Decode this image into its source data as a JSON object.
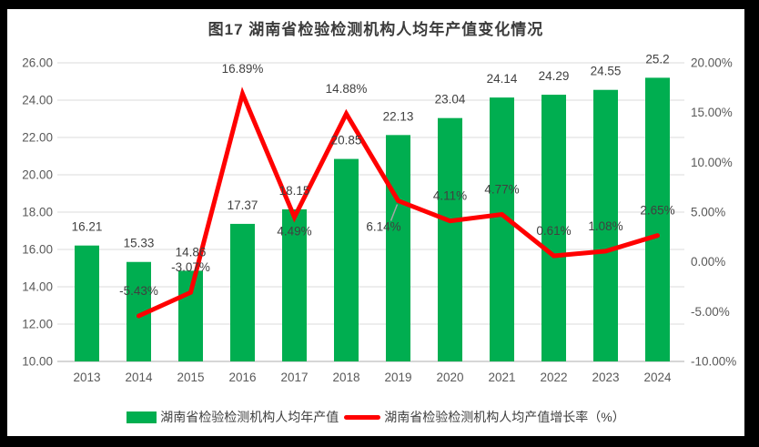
{
  "title": "图17 湖南省检验检测机构人均年产值变化情况",
  "colors": {
    "bar": "#00AE50",
    "line": "#FF0000",
    "value_label": "#404040",
    "axis_text": "#595959",
    "gridline": "#E2E2E2",
    "axis_line": "#D6D6D6",
    "leader": "#A6A6A6",
    "frame_bg": "#000000",
    "panel_bg": "#FFFFFF"
  },
  "chart_data": {
    "type": "bar+line combo",
    "categories": [
      "2013",
      "2014",
      "2015",
      "2016",
      "2017",
      "2018",
      "2019",
      "2020",
      "2021",
      "2022",
      "2023",
      "2024"
    ],
    "series": [
      {
        "name": "湖南省检验检测机构人均年产值",
        "type": "bar",
        "axis": "left",
        "values": [
          16.21,
          15.33,
          14.86,
          17.37,
          18.15,
          20.85,
          22.13,
          23.04,
          24.14,
          24.29,
          24.55,
          25.2
        ],
        "labels": [
          "16.21",
          "15.33",
          "14.86",
          "17.37",
          "18.15",
          "20.85",
          "22.13",
          "23.04",
          "24.14",
          "24.29",
          "24.55",
          "25.2"
        ]
      },
      {
        "name": "湖南省检验检测机构人均产值增长率（%）",
        "type": "line",
        "axis": "right",
        "values": [
          null,
          -5.43,
          -3.07,
          16.89,
          4.49,
          14.88,
          6.14,
          4.11,
          4.77,
          0.61,
          1.08,
          2.65
        ],
        "labels": [
          null,
          "-5.43%",
          "-3.07%",
          "16.89%",
          "4.49%",
          "14.88%",
          "6.14%",
          "4.11%",
          "4.77%",
          "0.61%",
          "1.08%",
          "2.65%"
        ],
        "label_offsets": {
          "4": {
            "dy": 20
          },
          "6": {
            "dx": -16,
            "dy": 33,
            "leader": true
          }
        }
      }
    ],
    "left_axis": {
      "min": 10,
      "max": 26,
      "step": 2,
      "ticks": [
        "26.00",
        "24.00",
        "22.00",
        "20.00",
        "18.00",
        "16.00",
        "14.00",
        "12.00",
        "10.00"
      ]
    },
    "right_axis": {
      "min": -10,
      "max": 20,
      "step": 5,
      "ticks": [
        "20.00%",
        "15.00%",
        "10.00%",
        "5.00%",
        "0.00%",
        "-5.00%",
        "-10.00%"
      ]
    },
    "grid": true,
    "legend_position": "bottom"
  }
}
